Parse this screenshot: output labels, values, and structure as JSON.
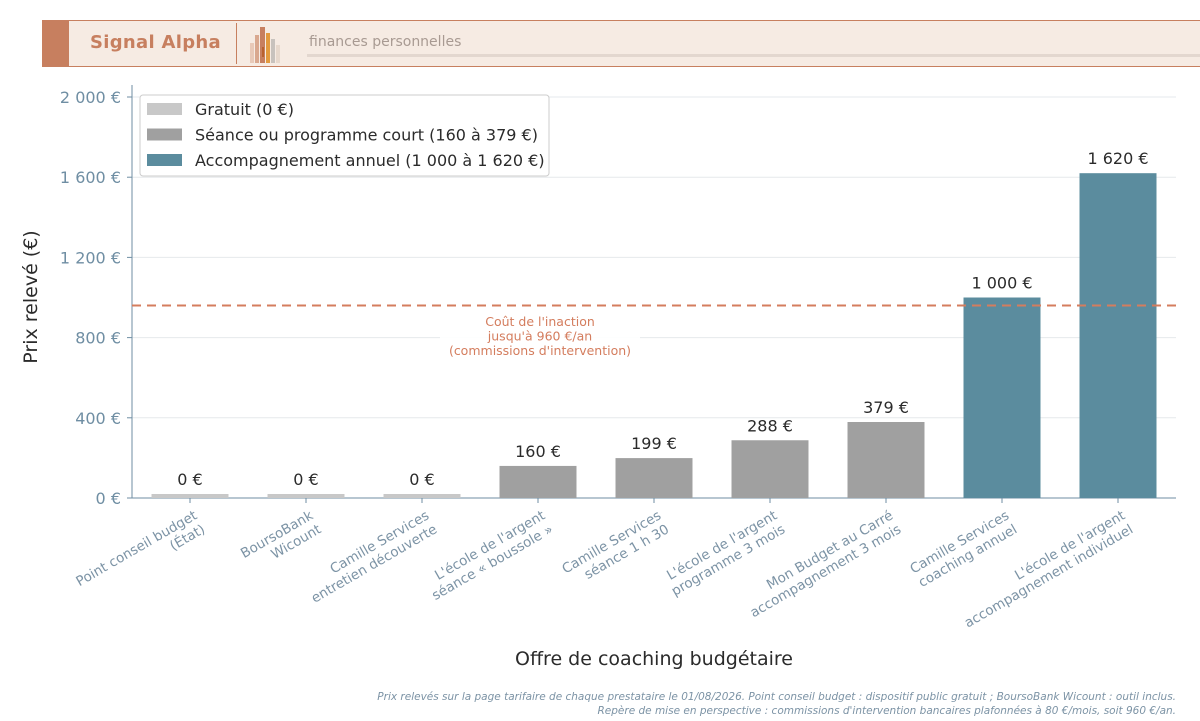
{
  "header": {
    "brand": "Signal Alpha",
    "tagline": "finances personnelles",
    "logo_icon": "city-bars-logo-icon"
  },
  "colors": {
    "free": "#c8c8c8",
    "short": "#a0a0a0",
    "annual": "#5b8c9e",
    "reference_line": "#d47d5e",
    "axis": "#6f8ea3",
    "brand": "#c77f5f"
  },
  "chart_data": {
    "type": "bar",
    "xlabel": "Offre de coaching budgétaire",
    "ylabel": "Prix relevé (€)",
    "ylim": [
      0,
      2000
    ],
    "yticks": [
      0,
      400,
      800,
      1200,
      1600,
      2000
    ],
    "ytick_labels": [
      "0 €",
      "400 €",
      "800 €",
      "1 200 €",
      "1 600 €",
      "2 000 €"
    ],
    "grid": true,
    "legend_position": "top-left",
    "categories": [
      [
        "Point conseil budget",
        "(État)"
      ],
      [
        "BoursoBank",
        "Wicount"
      ],
      [
        "Camille Services",
        "entretien découverte"
      ],
      [
        "L'école de l'argent",
        "séance « boussole »"
      ],
      [
        "Camille Services",
        "séance 1 h 30"
      ],
      [
        "L'école de l'argent",
        "programme 3 mois"
      ],
      [
        "Mon Budget au Carré",
        "accompagnement 3 mois"
      ],
      [
        "Camille Services",
        "coaching annuel"
      ],
      [
        "L'école de l'argent",
        "accompagnement individuel"
      ]
    ],
    "values": [
      0,
      0,
      0,
      160,
      199,
      288,
      379,
      1000,
      1620
    ],
    "value_labels": [
      "0 €",
      "0 €",
      "0 €",
      "160 €",
      "199 €",
      "288 €",
      "379 €",
      "1 000 €",
      "1 620 €"
    ],
    "groups": [
      "free",
      "free",
      "free",
      "short",
      "short",
      "short",
      "short",
      "annual",
      "annual"
    ],
    "legend": [
      {
        "group": "free",
        "label": "Gratuit (0 €)"
      },
      {
        "group": "short",
        "label": "Séance ou programme court (160 à 379 €)"
      },
      {
        "group": "annual",
        "label": "Accompagnement annuel (1 000 à 1 620 €)"
      }
    ],
    "reference_line": {
      "value": 960,
      "label": [
        "Coût de l'inaction",
        "jusqu'à 960 €/an",
        "(commissions d'intervention)"
      ]
    }
  },
  "source_note": [
    "Prix relevés sur la page tarifaire de chaque prestataire le 01/08/2026. Point conseil budget : dispositif public gratuit ; BoursoBank Wicount : outil inclus.",
    "Repère de mise en perspective : commissions d'intervention bancaires plafonnées à 80 €/mois, soit 960 €/an."
  ]
}
